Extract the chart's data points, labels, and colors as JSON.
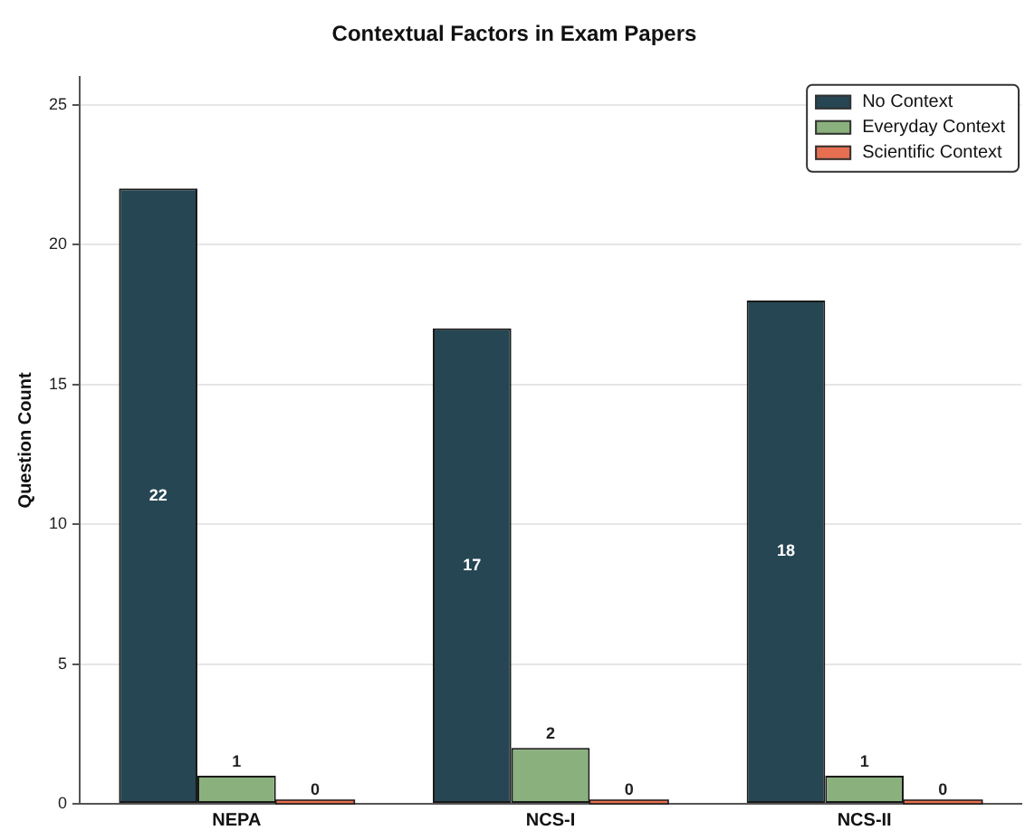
{
  "chart_data": {
    "type": "bar",
    "title": "Contextual Factors in Exam Papers",
    "ylabel": "Question Count",
    "categories": [
      "NEPA",
      "NCS-I",
      "NCS-II"
    ],
    "series": [
      {
        "name": "No Context",
        "color": "#264653",
        "values": [
          22,
          17,
          18
        ]
      },
      {
        "name": "Everyday Context",
        "color": "#8ab17d",
        "values": [
          1,
          2,
          1
        ]
      },
      {
        "name": "Scientific Context",
        "color": "#e76f51",
        "values": [
          0,
          0,
          0
        ]
      }
    ],
    "ylim": [
      0,
      26
    ],
    "yticks": [
      0,
      5,
      10,
      15,
      20,
      25
    ],
    "grid": "y",
    "legend": "top right",
    "data_labels": true
  }
}
